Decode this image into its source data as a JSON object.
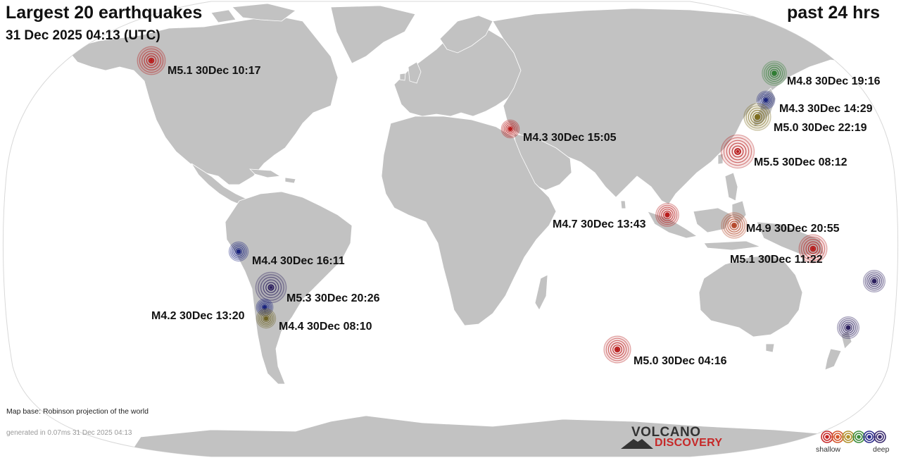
{
  "header": {
    "title": "Largest 20 earthquakes",
    "timestamp": "31 Dec 2025 04:13 (UTC)",
    "period": "past 24 hrs"
  },
  "colors": {
    "ocean": "#ffffff",
    "land": "#c2c2c2",
    "border": "#ffffff",
    "shallow": "#b71c1c",
    "intermediate": "#8d7a2a",
    "deep": "#1a237e"
  },
  "quakes": [
    {
      "label": "M5.1 30Dec 10:17",
      "magnitude": 5.1,
      "depth_class": "shallow",
      "color": "#b71c1c"
    },
    {
      "label": "M4.8 30Dec 19:16",
      "magnitude": 4.8,
      "depth_class": "shallow-green",
      "color": "#2e7d32"
    },
    {
      "label": "M4.3 30Dec 14:29",
      "magnitude": 4.3,
      "depth_class": "deep",
      "color": "#1a237e"
    },
    {
      "label": "M5.0 30Dec 22:19",
      "magnitude": 5.0,
      "depth_class": "intermediate",
      "color": "#7a6a1a"
    },
    {
      "label": "M4.3 30Dec 15:05",
      "magnitude": 4.3,
      "depth_class": "shallow",
      "color": "#b71c1c"
    },
    {
      "label": "M5.5 30Dec 08:12",
      "magnitude": 5.5,
      "depth_class": "shallow",
      "color": "#b71c1c"
    },
    {
      "label": "M4.7 30Dec 13:43",
      "magnitude": 4.7,
      "depth_class": "shallow",
      "color": "#b71c1c"
    },
    {
      "label": "M4.9 30Dec 20:55",
      "magnitude": 4.9,
      "depth_class": "shallow-orange",
      "color": "#b5482a"
    },
    {
      "label": "M5.1 30Dec 11:22",
      "magnitude": 5.1,
      "depth_class": "shallow",
      "color": "#b71c1c"
    },
    {
      "label": "M4.4 30Dec 16:11",
      "magnitude": 4.4,
      "depth_class": "deep",
      "color": "#1a237e"
    },
    {
      "label": "M5.3 30Dec 20:26",
      "magnitude": 5.3,
      "depth_class": "deep",
      "color": "#2c1f5e"
    },
    {
      "label": "M4.2 30Dec 13:20",
      "magnitude": 4.2,
      "depth_class": "deep",
      "color": "#1a237e"
    },
    {
      "label": "M4.4 30Dec 08:10",
      "magnitude": 4.4,
      "depth_class": "intermediate",
      "color": "#6e6325"
    },
    {
      "label": "M5.0 30Dec 04:16",
      "magnitude": 5.0,
      "depth_class": "shallow",
      "color": "#b71c1c"
    },
    {
      "label": "",
      "magnitude": null,
      "depth_class": "deep",
      "color": "#2c1f5e"
    },
    {
      "label": "",
      "magnitude": null,
      "depth_class": "deep",
      "color": "#2c1f5e"
    }
  ],
  "footer": {
    "map_base": "Map base: Robinson projection of the world",
    "generated": "generated in 0.07ms 31 Dec 2025 04:13"
  },
  "logo": {
    "line1": "VOLCANO",
    "line2": "DISCOVERY"
  },
  "legend": {
    "shallow_label": "shallow",
    "deep_label": "deep",
    "colors": [
      "#c62828",
      "#d4552a",
      "#b0902a",
      "#3b8c3b",
      "#2a2a8c",
      "#3a2a6e"
    ]
  }
}
